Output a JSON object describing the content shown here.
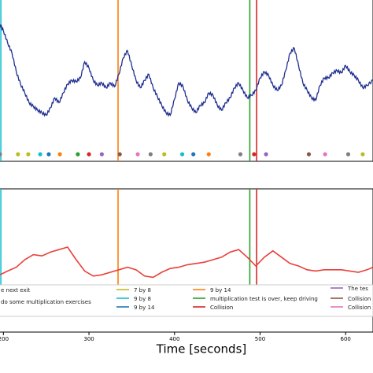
{
  "chart_data": [
    {
      "type": "line",
      "panel": "top",
      "xlim": [
        196,
        632
      ],
      "ylim": [
        0,
        1
      ],
      "grid": false,
      "series": [
        {
          "color": "#1f2f8f",
          "x": [
            196,
            200,
            205,
            210,
            215,
            220,
            225,
            230,
            235,
            240,
            245,
            250,
            255,
            260,
            265,
            270,
            275,
            280,
            285,
            290,
            295,
            300,
            305,
            310,
            315,
            320,
            325,
            330,
            335,
            340,
            345,
            350,
            355,
            360,
            365,
            370,
            375,
            380,
            385,
            390,
            395,
            400,
            405,
            410,
            415,
            420,
            425,
            430,
            435,
            440,
            445,
            450,
            455,
            460,
            465,
            470,
            475,
            480,
            485,
            490,
            495,
            500,
            505,
            510,
            515,
            520,
            525,
            530,
            535,
            540,
            545,
            550,
            555,
            560,
            565,
            570,
            575,
            580,
            585,
            590,
            595,
            600,
            605,
            610,
            615,
            620,
            625,
            632
          ],
          "y": [
            0.93,
            0.88,
            0.78,
            0.7,
            0.55,
            0.45,
            0.38,
            0.3,
            0.27,
            0.24,
            0.22,
            0.2,
            0.26,
            0.34,
            0.3,
            0.38,
            0.45,
            0.48,
            0.47,
            0.5,
            0.63,
            0.58,
            0.48,
            0.44,
            0.46,
            0.42,
            0.46,
            0.43,
            0.53,
            0.66,
            0.72,
            0.6,
            0.48,
            0.42,
            0.48,
            0.53,
            0.42,
            0.35,
            0.28,
            0.22,
            0.2,
            0.33,
            0.46,
            0.43,
            0.32,
            0.26,
            0.22,
            0.28,
            0.3,
            0.38,
            0.36,
            0.28,
            0.24,
            0.3,
            0.34,
            0.42,
            0.46,
            0.4,
            0.34,
            0.36,
            0.4,
            0.5,
            0.55,
            0.52,
            0.44,
            0.4,
            0.44,
            0.56,
            0.7,
            0.74,
            0.6,
            0.46,
            0.4,
            0.34,
            0.32,
            0.44,
            0.5,
            0.5,
            0.54,
            0.56,
            0.54,
            0.6,
            0.55,
            0.52,
            0.48,
            0.42,
            0.44,
            0.48
          ]
        }
      ],
      "markers": [
        {
          "x": 196,
          "color": "#7f7f7f"
        },
        {
          "x": 217,
          "color": "#bcbd22"
        },
        {
          "x": 229,
          "color": "#bcbd22"
        },
        {
          "x": 243,
          "color": "#17becf"
        },
        {
          "x": 253,
          "color": "#1f77b4"
        },
        {
          "x": 266,
          "color": "#ff7f0e"
        },
        {
          "x": 287,
          "color": "#2ca02c"
        },
        {
          "x": 300,
          "color": "#d62728"
        },
        {
          "x": 315,
          "color": "#9467bd"
        },
        {
          "x": 336,
          "color": "#8c564b"
        },
        {
          "x": 357,
          "color": "#e377c2"
        },
        {
          "x": 372,
          "color": "#7f7f7f"
        },
        {
          "x": 388,
          "color": "#bcbd22"
        },
        {
          "x": 409,
          "color": "#17becf"
        },
        {
          "x": 422,
          "color": "#1f77b4"
        },
        {
          "x": 440,
          "color": "#ff7f0e"
        },
        {
          "x": 477,
          "color": "#7f7f7f"
        },
        {
          "x": 493,
          "color": "#d62728"
        },
        {
          "x": 507,
          "color": "#9467bd"
        },
        {
          "x": 557,
          "color": "#8c564b"
        },
        {
          "x": 576,
          "color": "#e377c2"
        },
        {
          "x": 603,
          "color": "#7f7f7f"
        },
        {
          "x": 620,
          "color": "#bcbd22"
        }
      ]
    },
    {
      "type": "line",
      "panel": "bottom",
      "xlim": [
        196,
        632
      ],
      "ylim": [
        0,
        1
      ],
      "grid": false,
      "series": [
        {
          "color": "#e8403a",
          "x": [
            196,
            205,
            215,
            225,
            235,
            245,
            255,
            265,
            275,
            280,
            285,
            295,
            305,
            315,
            325,
            335,
            345,
            355,
            365,
            375,
            385,
            395,
            405,
            415,
            425,
            435,
            445,
            455,
            465,
            475,
            485,
            495,
            505,
            515,
            525,
            535,
            545,
            555,
            565,
            575,
            585,
            595,
            605,
            615,
            625,
            632
          ],
          "y": [
            0.38,
            0.41,
            0.44,
            0.5,
            0.54,
            0.53,
            0.56,
            0.58,
            0.6,
            0.55,
            0.5,
            0.41,
            0.37,
            0.38,
            0.4,
            0.42,
            0.44,
            0.42,
            0.37,
            0.36,
            0.4,
            0.43,
            0.44,
            0.46,
            0.47,
            0.48,
            0.5,
            0.52,
            0.56,
            0.58,
            0.52,
            0.45,
            0.52,
            0.57,
            0.52,
            0.47,
            0.45,
            0.42,
            0.41,
            0.42,
            0.42,
            0.42,
            0.41,
            0.4,
            0.42,
            0.44
          ]
        }
      ]
    }
  ],
  "events": [
    {
      "x": 197,
      "color": "#17becf"
    },
    {
      "x": 334,
      "color": "#ff7f0e"
    },
    {
      "x": 488,
      "color": "#2ca02c"
    },
    {
      "x": 496,
      "color": "#d62728"
    }
  ],
  "xaxis": {
    "label": "Time [seconds]",
    "ticks": [
      {
        "v": 200,
        "label": "200"
      },
      {
        "v": 300,
        "label": "300"
      },
      {
        "v": 400,
        "label": "400"
      },
      {
        "v": 500,
        "label": "500"
      },
      {
        "v": 600,
        "label": "600"
      }
    ]
  },
  "legend": {
    "entries": [
      {
        "label": "e next exit",
        "color": "#ffffff"
      },
      {
        "label": "do some multiplication exercises",
        "color": "#ffffff"
      },
      {
        "label": "7 by 8",
        "color": "#bcbd22"
      },
      {
        "label": "9 by 8",
        "color": "#17becf"
      },
      {
        "label": "9 by 14",
        "color": "#1f77b4"
      },
      {
        "label": "9 by 14",
        "color": "#ff7f0e"
      },
      {
        "label": "multiplication test is over, keep driving",
        "color": "#2ca02c"
      },
      {
        "label": "Collision",
        "color": "#d62728"
      },
      {
        "label": "The tes",
        "color": "#9467bd"
      },
      {
        "label": "Collision",
        "color": "#8c564b"
      },
      {
        "label": "Collision",
        "color": "#e377c2"
      }
    ]
  }
}
